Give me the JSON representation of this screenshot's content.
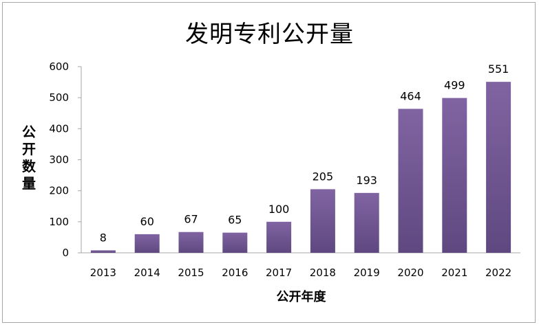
{
  "chart_data": {
    "type": "bar",
    "title": "发明专利公开量",
    "xlabel": "公开年度",
    "ylabel": "公开数量",
    "categories": [
      "2013",
      "2014",
      "2015",
      "2016",
      "2017",
      "2018",
      "2019",
      "2020",
      "2021",
      "2022"
    ],
    "values": [
      8,
      60,
      67,
      65,
      100,
      205,
      193,
      464,
      499,
      551
    ],
    "ylim": [
      0,
      600
    ],
    "yticks": [
      0,
      100,
      200,
      300,
      400,
      500,
      600
    ],
    "grid": false,
    "legend": "none",
    "data_labels": true,
    "colors": {
      "bar_top": "#8064a2",
      "bar_bottom": "#5f4880",
      "axis": "#a6a6a6"
    }
  }
}
